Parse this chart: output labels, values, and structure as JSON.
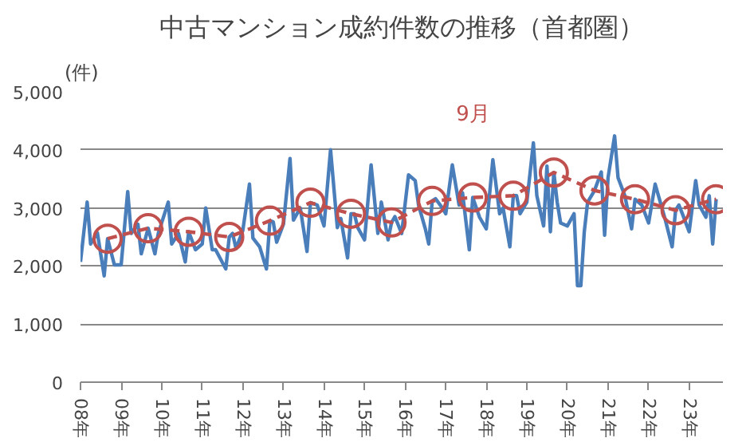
{
  "chart_data": {
    "type": "line",
    "title": "中古マンション成約件数の推移（首都圏）",
    "ylabel": "(件)",
    "xlim": [
      "2008-01",
      "2023-11"
    ],
    "ylim": [
      0,
      5000
    ],
    "yticks": [
      0,
      {
        "value": 1000,
        "label": "1,000"
      },
      {
        "value": 2000,
        "label": "2,000"
      },
      {
        "value": 3000,
        "label": "3,000"
      },
      {
        "value": 4000,
        "label": "4,000"
      },
      {
        "value": 5000,
        "label": "5,000"
      }
    ],
    "xticks": [
      {
        "value": "2008-01",
        "label": "08年"
      },
      {
        "value": "2009-01",
        "label": "09年"
      },
      {
        "value": "2010-01",
        "label": "10年"
      },
      {
        "value": "2011-01",
        "label": "11年"
      },
      {
        "value": "2012-01",
        "label": "12年"
      },
      {
        "value": "2013-01",
        "label": "13年"
      },
      {
        "value": "2014-01",
        "label": "14年"
      },
      {
        "value": "2015-01",
        "label": "15年"
      },
      {
        "value": "2016-01",
        "label": "16年"
      },
      {
        "value": "2017-01",
        "label": "17年"
      },
      {
        "value": "2018-01",
        "label": "18年"
      },
      {
        "value": "2019-01",
        "label": "19年"
      },
      {
        "value": "2020-01",
        "label": "20年"
      },
      {
        "value": "2021-01",
        "label": "21年"
      },
      {
        "value": "2022-01",
        "label": "22年"
      },
      {
        "value": "2023-01",
        "label": "23年"
      }
    ],
    "grid": "y",
    "series": [
      {
        "color": "#4a7ebb",
        "marker": "none",
        "line_style": "solid",
        "x": [
          "2008-01",
          "2008-03",
          "2008-04",
          "2008-06",
          "2008-08",
          "2008-09",
          "2008-11",
          "2009-01",
          "2009-03",
          "2009-04",
          "2009-06",
          "2009-07",
          "2009-09",
          "2009-11",
          "2009-12",
          "2010-03",
          "2010-04",
          "2010-06",
          "2010-08",
          "2010-09",
          "2010-11",
          "2011-01",
          "2011-02",
          "2011-04",
          "2011-05",
          "2011-08",
          "2011-09",
          "2011-10",
          "2011-11",
          "2012-01",
          "2012-03",
          "2012-04",
          "2012-06",
          "2012-08",
          "2012-09",
          "2012-10",
          "2012-11",
          "2013-01",
          "2013-03",
          "2013-04",
          "2013-06",
          "2013-08",
          "2013-09",
          "2013-11",
          "2014-01",
          "2014-03",
          "2014-05",
          "2014-06",
          "2014-08",
          "2014-09",
          "2014-10",
          "2014-11",
          "2015-01",
          "2015-03",
          "2015-05",
          "2015-06",
          "2015-08",
          "2015-09",
          "2015-10",
          "2015-12",
          "2016-02",
          "2016-04",
          "2016-05",
          "2016-07",
          "2016-08",
          "2016-09",
          "2016-10",
          "2016-12",
          "2017-01",
          "2017-03",
          "2017-05",
          "2017-06",
          "2017-08",
          "2017-09",
          "2017-11",
          "2018-01",
          "2018-03",
          "2018-05",
          "2018-06",
          "2018-08",
          "2018-09",
          "2018-10",
          "2018-11",
          "2019-01",
          "2019-03",
          "2019-04",
          "2019-06",
          "2019-07",
          "2019-08",
          "2019-09",
          "2019-10",
          "2019-11",
          "2020-01",
          "2020-03",
          "2020-04",
          "2020-05",
          "2020-06",
          "2020-07",
          "2020-09",
          "2020-11",
          "2020-12",
          "2021-01",
          "2021-03",
          "2021-04",
          "2021-06",
          "2021-08",
          "2021-09",
          "2021-11",
          "2022-01",
          "2022-03",
          "2022-05",
          "2022-06",
          "2022-08",
          "2022-09",
          "2022-10",
          "2022-11",
          "2023-01",
          "2023-03",
          "2023-04",
          "2023-06",
          "2023-07",
          "2023-08",
          "2023-09"
        ],
        "values": [
          2070,
          3100,
          2380,
          2570,
          1830,
          2470,
          2020,
          2020,
          3280,
          2560,
          2720,
          2210,
          2650,
          2210,
          2560,
          3100,
          2380,
          2560,
          2070,
          2590,
          2280,
          2380,
          3000,
          2280,
          2280,
          1950,
          2500,
          2560,
          2300,
          2610,
          3410,
          2480,
          2330,
          1950,
          2780,
          2760,
          2410,
          2720,
          3850,
          2790,
          3000,
          2250,
          3090,
          3050,
          2690,
          4000,
          2660,
          2820,
          2140,
          2900,
          2900,
          2660,
          2450,
          3740,
          2560,
          3100,
          2450,
          2750,
          2850,
          2560,
          3570,
          3470,
          3050,
          2640,
          2380,
          3120,
          3160,
          3000,
          2900,
          3740,
          3050,
          3260,
          2280,
          3180,
          2840,
          2640,
          3830,
          2900,
          3000,
          2330,
          3210,
          3210,
          2900,
          3100,
          4120,
          3210,
          2690,
          3720,
          2590,
          3610,
          3100,
          2740,
          2690,
          2900,
          1660,
          1660,
          2590,
          3100,
          3300,
          3620,
          2530,
          3520,
          4240,
          3520,
          3210,
          2640,
          3150,
          3050,
          2740,
          3410,
          3000,
          2790,
          2330,
          2960,
          3050,
          2900,
          2590,
          3470,
          3050,
          2840,
          3210,
          2380,
          3150
        ]
      },
      {
        "name": "9月",
        "color": "#c0504d",
        "marker": "circle",
        "line_style": "dashed",
        "x": [
          "2008-09",
          "2009-09",
          "2010-09",
          "2011-09",
          "2012-09",
          "2013-09",
          "2014-09",
          "2015-09",
          "2016-09",
          "2017-09",
          "2018-09",
          "2019-09",
          "2020-09",
          "2021-09",
          "2022-09",
          "2023-09"
        ],
        "values": [
          2470,
          2650,
          2590,
          2500,
          2780,
          3090,
          2900,
          2750,
          3120,
          3180,
          3210,
          3610,
          3300,
          3150,
          2960,
          3150
        ]
      }
    ]
  }
}
